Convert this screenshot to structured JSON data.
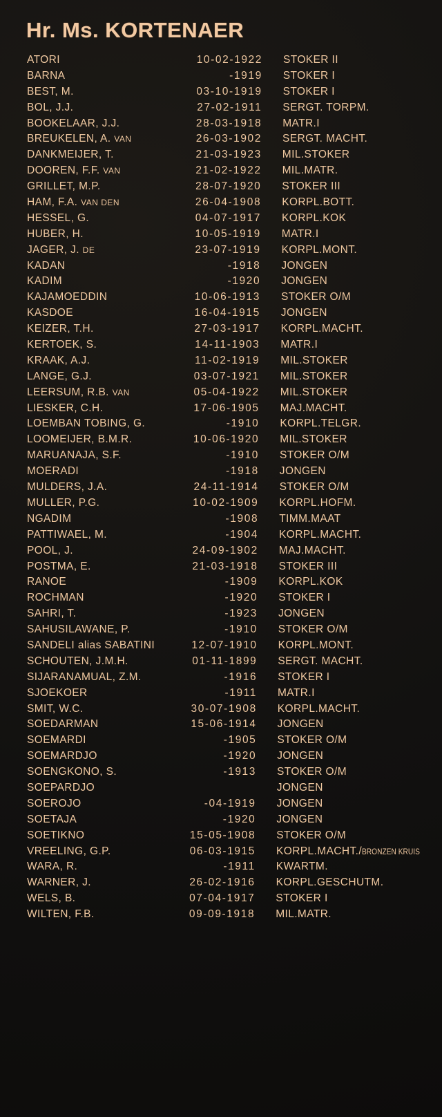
{
  "title": "Hr. Ms. KORTENAER",
  "colors": {
    "background": "#141210",
    "lettering": "#efc8a0"
  },
  "rows": [
    {
      "name": "ATORI",
      "date": "10-02-1922",
      "rank": "STOKER II"
    },
    {
      "name": "BARNA",
      "date": "-1919",
      "rank": "STOKER I"
    },
    {
      "name": "BEST, M.",
      "date": "03-10-1919",
      "rank": "STOKER I"
    },
    {
      "name": "BOL, J.J.",
      "date": "27-02-1911",
      "rank": "SERGT. TORPM."
    },
    {
      "name": "BOOKELAAR, J.J.",
      "date": "28-03-1918",
      "rank": "MATR.I"
    },
    {
      "name": "BREUKELEN, A.",
      "particle": "VAN",
      "date": "26-03-1902",
      "rank": "SERGT. MACHT."
    },
    {
      "name": "DANKMEIJER, T.",
      "date": "21-03-1923",
      "rank": "MIL.STOKER"
    },
    {
      "name": "DOOREN, F.F.",
      "particle": "VAN",
      "date": "21-02-1922",
      "rank": "MIL.MATR."
    },
    {
      "name": "GRILLET, M.P.",
      "date": "28-07-1920",
      "rank": "STOKER III"
    },
    {
      "name": "HAM, F.A.",
      "particle": "VAN DEN",
      "date": "26-04-1908",
      "rank": "KORPL.BOTT."
    },
    {
      "name": "HESSEL, G.",
      "date": "04-07-1917",
      "rank": "KORPL.KOK"
    },
    {
      "name": "HUBER, H.",
      "date": "10-05-1919",
      "rank": "MATR.I"
    },
    {
      "name": "JAGER, J.",
      "particle": "DE",
      "date": "23-07-1919",
      "rank": "KORPL.MONT."
    },
    {
      "name": "KADAN",
      "date": "-1918",
      "rank": "JONGEN"
    },
    {
      "name": "KADIM",
      "date": "-1920",
      "rank": "JONGEN"
    },
    {
      "name": "KAJAMOEDDIN",
      "date": "10-06-1913",
      "rank": "STOKER O/M"
    },
    {
      "name": "KASDOE",
      "date": "16-04-1915",
      "rank": "JONGEN"
    },
    {
      "name": "KEIZER, T.H.",
      "date": "27-03-1917",
      "rank": "KORPL.MACHT."
    },
    {
      "name": "KERTOEK, S.",
      "date": "14-11-1903",
      "rank": "MATR.I"
    },
    {
      "name": "KRAAK, A.J.",
      "date": "11-02-1919",
      "rank": "MIL.STOKER"
    },
    {
      "name": "LANGE, G.J.",
      "date": "03-07-1921",
      "rank": "MIL.STOKER"
    },
    {
      "name": "LEERSUM, R.B.",
      "particle": "VAN",
      "date": "05-04-1922",
      "rank": "MIL.STOKER"
    },
    {
      "name": "LIESKER, C.H.",
      "date": "17-06-1905",
      "rank": "MAJ.MACHT."
    },
    {
      "name": "LOEMBAN TOBING, G.",
      "date": "-1910",
      "rank": "KORPL.TELGR."
    },
    {
      "name": "LOOMEIJER, B.M.R.",
      "date": "10-06-1920",
      "rank": "MIL.STOKER"
    },
    {
      "name": "MARUANAJA, S.F.",
      "date": "-1910",
      "rank": "STOKER O/M"
    },
    {
      "name": "MOERADI",
      "date": "-1918",
      "rank": "JONGEN"
    },
    {
      "name": "MULDERS, J.A.",
      "date": "24-11-1914",
      "rank": "STOKER O/M"
    },
    {
      "name": "MULLER, P.G.",
      "date": "10-02-1909",
      "rank": "KORPL.HOFM."
    },
    {
      "name": "NGADIM",
      "date": "-1908",
      "rank": "TIMM.MAAT"
    },
    {
      "name": "PATTIWAEL, M.",
      "date": "-1904",
      "rank": "KORPL.MACHT."
    },
    {
      "name": "POOL, J.",
      "date": "24-09-1902",
      "rank": "MAJ.MACHT."
    },
    {
      "name": "POSTMA, E.",
      "date": "21-03-1918",
      "rank": "STOKER III"
    },
    {
      "name": "RANOE",
      "date": "-1909",
      "rank": "KORPL.KOK"
    },
    {
      "name": "ROCHMAN",
      "date": "-1920",
      "rank": "STOKER I"
    },
    {
      "name": "SAHRI, T.",
      "date": "-1923",
      "rank": "JONGEN"
    },
    {
      "name": "SAHUSILAWANE, P.",
      "date": "-1910",
      "rank": "STOKER O/M"
    },
    {
      "name": "SANDELI alias SABATINI",
      "date": "12-07-1910",
      "rank": "KORPL.MONT."
    },
    {
      "name": "SCHOUTEN, J.M.H.",
      "date": "01-11-1899",
      "rank": "SERGT. MACHT."
    },
    {
      "name": "SIJARANAMUAL, Z.M.",
      "date": "-1916",
      "rank": "STOKER I"
    },
    {
      "name": "SJOEKOER",
      "date": "-1911",
      "rank": "MATR.I"
    },
    {
      "name": "SMIT, W.C.",
      "date": "30-07-1908",
      "rank": "KORPL.MACHT."
    },
    {
      "name": "SOEDARMAN",
      "date": "15-06-1914",
      "rank": "JONGEN"
    },
    {
      "name": "SOEMARDI",
      "date": "-1905",
      "rank": "STOKER O/M"
    },
    {
      "name": "SOEMARDJO",
      "date": "-1920",
      "rank": "JONGEN"
    },
    {
      "name": "SOENGKONO, S.",
      "date": "-1913",
      "rank": "STOKER O/M"
    },
    {
      "name": "SOEPARDJO",
      "date": "",
      "rank": "JONGEN"
    },
    {
      "name": "SOEROJO",
      "date": "-04-1919",
      "rank": "JONGEN"
    },
    {
      "name": "SOETAJA",
      "date": "-1920",
      "rank": "JONGEN"
    },
    {
      "name": "SOETIKNO",
      "date": "15-05-1908",
      "rank": "STOKER O/M"
    },
    {
      "name": "VREELING, G.P.",
      "date": "06-03-1915",
      "rank": "KORPL.MACHT./",
      "rank_extra": "BRONZEN KRUIS"
    },
    {
      "name": "WARA, R.",
      "date": "-1911",
      "rank": "KWARTM."
    },
    {
      "name": "WARNER, J.",
      "date": "26-02-1916",
      "rank": "KORPL.GESCHUTM."
    },
    {
      "name": "WELS, B.",
      "date": "07-04-1917",
      "rank": "STOKER I"
    },
    {
      "name": "WILTEN, F.B.",
      "date": "09-09-1918",
      "rank": "MIL.MATR."
    }
  ]
}
